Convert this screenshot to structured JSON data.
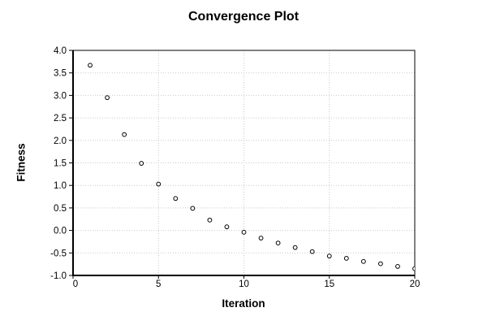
{
  "chart_data": {
    "type": "scatter",
    "title": "Convergence Plot",
    "xlabel": "Iteration",
    "ylabel": "Fitness",
    "x": [
      1,
      2,
      3,
      4,
      5,
      6,
      7,
      8,
      9,
      10,
      11,
      12,
      13,
      14,
      15,
      16,
      17,
      18,
      19,
      20
    ],
    "y": [
      3.67,
      2.95,
      2.13,
      1.49,
      1.03,
      0.71,
      0.49,
      0.23,
      0.08,
      -0.04,
      -0.17,
      -0.28,
      -0.38,
      -0.47,
      -0.57,
      -0.62,
      -0.69,
      -0.74,
      -0.8,
      -0.85
    ],
    "xlim": [
      0,
      20
    ],
    "ylim": [
      -1.0,
      4.0
    ],
    "x_tick_values": [
      0,
      5,
      10,
      15,
      20
    ],
    "x_tick_labels": [
      "0",
      "5",
      "10",
      "15",
      "20"
    ],
    "y_tick_values": [
      4.0,
      3.5,
      3.0,
      2.5,
      2.0,
      1.5,
      1.0,
      0.5,
      0.0,
      -0.5,
      -1.0
    ],
    "y_tick_labels": [
      "4.0",
      "3.5",
      "3.0",
      "2.5",
      "2.0",
      "1.5",
      "1.0",
      "0.5",
      "0.0",
      "-0.5",
      "-1.0"
    ],
    "grid": true,
    "grid_style": "dotted",
    "legend": "none",
    "marker": "open-circle",
    "colors": {
      "background": "#ffffff",
      "axis": "#000000",
      "grid": "#c9c9c9",
      "marker_stroke": "#000000",
      "marker_fill": "#ffffff",
      "text": "#000000"
    }
  }
}
